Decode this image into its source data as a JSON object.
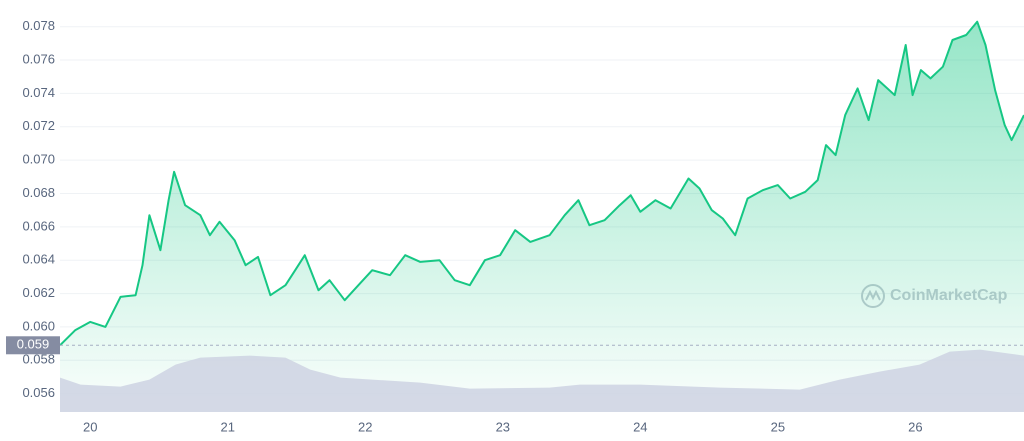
{
  "chart_data": {
    "type": "line",
    "watermark": "CoinMarketCap",
    "current_price": {
      "value": 0.0589,
      "label": "0.059"
    },
    "xlim": [
      19.78,
      26.79
    ],
    "xticks": [
      20,
      21,
      22,
      23,
      24,
      25,
      26
    ],
    "ylim": [
      0.0549,
      0.0796
    ],
    "yticks": [
      0.056,
      0.058,
      {
        "value": 0.06,
        "label": "0.060"
      },
      0.062,
      0.064,
      0.066,
      0.068,
      {
        "value": 0.07,
        "label": "0.070"
      },
      0.072,
      0.074,
      0.076,
      0.078
    ],
    "grid": true,
    "series": [
      {
        "color": "#16c784",
        "x": [
          19.78,
          19.89,
          20.0,
          20.11,
          20.22,
          20.33,
          20.38,
          20.43,
          20.51,
          20.57,
          20.61,
          20.69,
          20.8,
          20.87,
          20.94,
          21.05,
          21.13,
          21.22,
          21.31,
          21.42,
          21.49,
          21.56,
          21.66,
          21.74,
          21.85,
          21.95,
          22.05,
          22.18,
          22.29,
          22.4,
          22.54,
          22.65,
          22.76,
          22.87,
          22.98,
          23.09,
          23.2,
          23.34,
          23.45,
          23.55,
          23.63,
          23.74,
          23.85,
          23.93,
          24.0,
          24.11,
          24.22,
          24.35,
          24.43,
          24.52,
          24.6,
          24.69,
          24.78,
          24.89,
          25.0,
          25.09,
          25.2,
          25.29,
          25.35,
          25.42,
          25.49,
          25.58,
          25.66,
          25.73,
          25.85,
          25.93,
          25.98,
          26.04,
          26.11,
          26.2,
          26.27,
          26.37,
          26.45,
          26.51,
          26.58,
          26.65,
          26.7,
          26.79
        ],
        "values": [
          0.0589,
          0.0598,
          0.0603,
          0.06,
          0.0618,
          0.0619,
          0.0637,
          0.0667,
          0.0646,
          0.0676,
          0.0693,
          0.0673,
          0.0667,
          0.0655,
          0.0663,
          0.0652,
          0.0637,
          0.0642,
          0.0619,
          0.0625,
          0.0634,
          0.0643,
          0.0622,
          0.0628,
          0.0616,
          0.0625,
          0.0634,
          0.0631,
          0.0643,
          0.0639,
          0.064,
          0.0628,
          0.0625,
          0.064,
          0.0643,
          0.0658,
          0.0651,
          0.0655,
          0.0667,
          0.0676,
          0.0661,
          0.0664,
          0.0673,
          0.0679,
          0.0669,
          0.0676,
          0.0671,
          0.0689,
          0.0683,
          0.067,
          0.0665,
          0.0655,
          0.0677,
          0.0682,
          0.0685,
          0.0677,
          0.0681,
          0.0688,
          0.0709,
          0.0703,
          0.0727,
          0.0743,
          0.0724,
          0.0748,
          0.0739,
          0.0769,
          0.0739,
          0.0754,
          0.0749,
          0.0756,
          0.0772,
          0.0775,
          0.0783,
          0.0769,
          0.0742,
          0.0721,
          0.0712,
          0.0727
        ]
      },
      {
        "color": "#cfd5e3",
        "x": [
          19.78,
          19.93,
          20.22,
          20.43,
          20.62,
          20.8,
          21.16,
          21.42,
          21.6,
          21.82,
          22.4,
          22.76,
          23.34,
          23.56,
          24.0,
          24.58,
          25.16,
          25.45,
          25.74,
          26.03,
          26.25,
          26.47,
          26.79
        ],
        "values": [
          0.05696,
          0.05654,
          0.05642,
          0.05684,
          0.05774,
          0.05816,
          0.05828,
          0.05816,
          0.05744,
          0.05696,
          0.05666,
          0.0563,
          0.05636,
          0.05654,
          0.05654,
          0.05636,
          0.05624,
          0.05684,
          0.05732,
          0.05774,
          0.05852,
          0.05864,
          0.05828
        ]
      }
    ]
  }
}
